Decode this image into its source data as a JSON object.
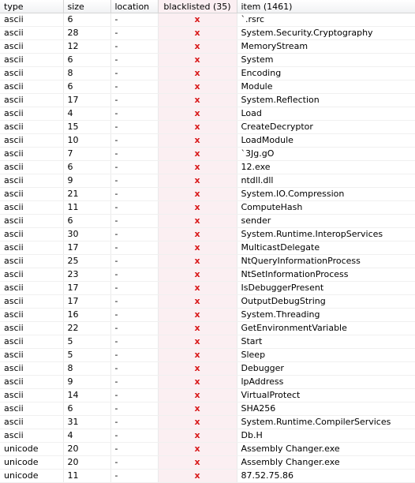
{
  "headers": {
    "type": "type",
    "size": "size",
    "location": "location",
    "blacklisted": "blacklisted (35)",
    "item": "item (1461)"
  },
  "blacklist_mark": "x",
  "rows": [
    {
      "type": "ascii",
      "size": "6",
      "location": "-",
      "item": "`.rsrc"
    },
    {
      "type": "ascii",
      "size": "28",
      "location": "-",
      "item": "System.Security.Cryptography"
    },
    {
      "type": "ascii",
      "size": "12",
      "location": "-",
      "item": "MemoryStream"
    },
    {
      "type": "ascii",
      "size": "6",
      "location": "-",
      "item": "System"
    },
    {
      "type": "ascii",
      "size": "8",
      "location": "-",
      "item": "Encoding"
    },
    {
      "type": "ascii",
      "size": "6",
      "location": "-",
      "item": "Module"
    },
    {
      "type": "ascii",
      "size": "17",
      "location": "-",
      "item": "System.Reflection"
    },
    {
      "type": "ascii",
      "size": "4",
      "location": "-",
      "item": "Load"
    },
    {
      "type": "ascii",
      "size": "15",
      "location": "-",
      "item": "CreateDecryptor"
    },
    {
      "type": "ascii",
      "size": "10",
      "location": "-",
      "item": "LoadModule"
    },
    {
      "type": "ascii",
      "size": "7",
      "location": "-",
      "item": "`3Jg.gO"
    },
    {
      "type": "ascii",
      "size": "6",
      "location": "-",
      "item": "12.exe"
    },
    {
      "type": "ascii",
      "size": "9",
      "location": "-",
      "item": "ntdll.dll"
    },
    {
      "type": "ascii",
      "size": "21",
      "location": "-",
      "item": "System.IO.Compression"
    },
    {
      "type": "ascii",
      "size": "11",
      "location": "-",
      "item": "ComputeHash"
    },
    {
      "type": "ascii",
      "size": "6",
      "location": "-",
      "item": "sender"
    },
    {
      "type": "ascii",
      "size": "30",
      "location": "-",
      "item": "System.Runtime.InteropServices"
    },
    {
      "type": "ascii",
      "size": "17",
      "location": "-",
      "item": "MulticastDelegate"
    },
    {
      "type": "ascii",
      "size": "25",
      "location": "-",
      "item": "NtQueryInformationProcess"
    },
    {
      "type": "ascii",
      "size": "23",
      "location": "-",
      "item": "NtSetInformationProcess"
    },
    {
      "type": "ascii",
      "size": "17",
      "location": "-",
      "item": "IsDebuggerPresent"
    },
    {
      "type": "ascii",
      "size": "17",
      "location": "-",
      "item": "OutputDebugString"
    },
    {
      "type": "ascii",
      "size": "16",
      "location": "-",
      "item": "System.Threading"
    },
    {
      "type": "ascii",
      "size": "22",
      "location": "-",
      "item": "GetEnvironmentVariable"
    },
    {
      "type": "ascii",
      "size": "5",
      "location": "-",
      "item": "Start"
    },
    {
      "type": "ascii",
      "size": "5",
      "location": "-",
      "item": "Sleep"
    },
    {
      "type": "ascii",
      "size": "8",
      "location": "-",
      "item": "Debugger"
    },
    {
      "type": "ascii",
      "size": "9",
      "location": "-",
      "item": "lpAddress"
    },
    {
      "type": "ascii",
      "size": "14",
      "location": "-",
      "item": "VirtualProtect"
    },
    {
      "type": "ascii",
      "size": "6",
      "location": "-",
      "item": "SHA256"
    },
    {
      "type": "ascii",
      "size": "31",
      "location": "-",
      "item": "System.Runtime.CompilerServices"
    },
    {
      "type": "ascii",
      "size": "4",
      "location": "-",
      "item": "Db.H"
    },
    {
      "type": "unicode",
      "size": "20",
      "location": "-",
      "item": "Assembly Changer.exe"
    },
    {
      "type": "unicode",
      "size": "20",
      "location": "-",
      "item": "Assembly Changer.exe"
    },
    {
      "type": "unicode",
      "size": "11",
      "location": "-",
      "item": "87.52.75.86"
    }
  ]
}
